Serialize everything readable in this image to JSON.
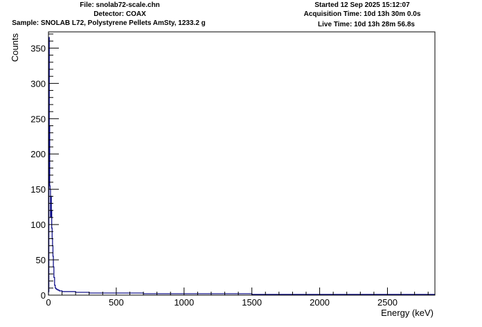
{
  "header": {
    "file": "File: snolab72-scale.chn",
    "detector": "Detector: COAX",
    "sample": "Sample: SNOLAB L72, Polystyrene Pellets AmSty, 1233.2 g",
    "started": "Started 12 Sep 2025 15:12:07",
    "acquisition_time": "Acquisition Time: 10d 13h 30m 0.0s",
    "live_time": "Live Time: 10d 13h 28m 56.8s"
  },
  "colors": {
    "series": "#000080",
    "axis": "#000000",
    "background": "#ffffff"
  },
  "chart_data": {
    "type": "histogram",
    "xlabel": "Energy (keV)",
    "ylabel": "Counts",
    "xlim": [
      0,
      2850
    ],
    "ylim": [
      0,
      373
    ],
    "x_ticks": [
      0,
      500,
      1000,
      1500,
      2000,
      2500
    ],
    "y_ticks": [
      0,
      50,
      100,
      150,
      200,
      250,
      300,
      350
    ],
    "grid": false,
    "legend": "none",
    "series": [
      {
        "x": [
          0,
          3,
          6,
          9,
          12,
          15,
          18,
          21,
          24,
          27,
          30,
          33,
          36,
          40,
          45,
          50,
          55,
          60,
          70,
          80,
          100,
          130,
          160,
          200,
          250,
          300,
          400,
          500,
          700,
          1000,
          1500,
          2000,
          2500,
          2850
        ],
        "y": [
          5,
          365,
          240,
          155,
          150,
          110,
          140,
          120,
          95,
          80,
          70,
          55,
          40,
          25,
          14,
          10,
          9,
          8,
          7,
          6,
          5,
          5,
          5,
          4,
          4,
          3,
          3,
          3,
          2,
          2,
          1,
          1,
          1,
          1
        ]
      }
    ]
  }
}
